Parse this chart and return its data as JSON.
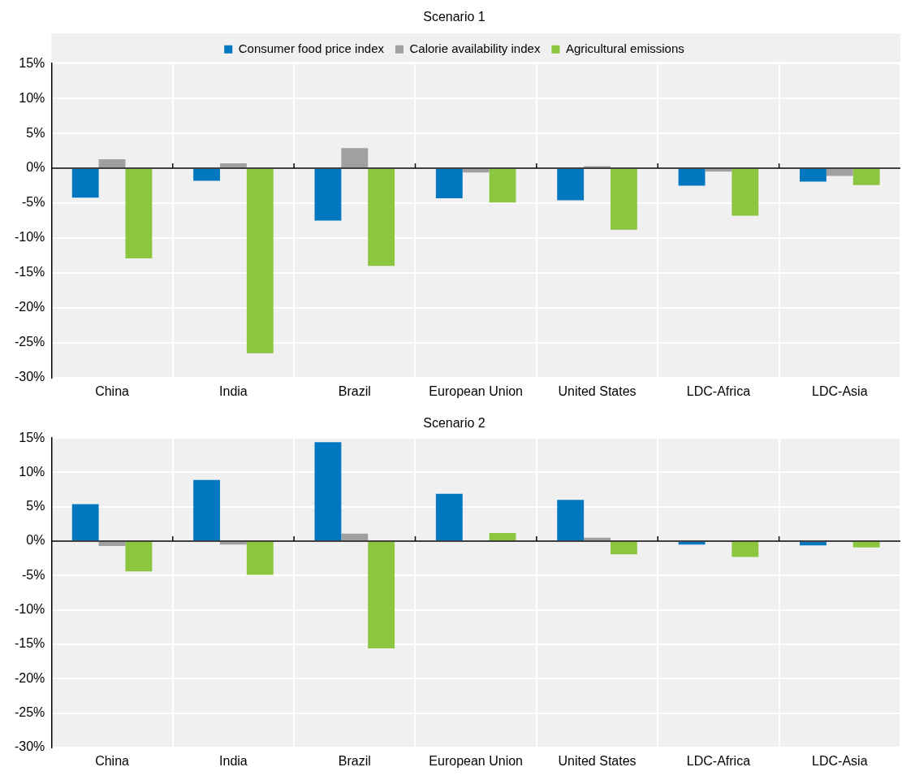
{
  "chart_data": [
    {
      "type": "bar",
      "title": "Scenario 1",
      "categories": [
        "China",
        "India",
        "Brazil",
        "European Union",
        "United States",
        "LDC-Africa",
        "LDC-Asia"
      ],
      "series": [
        {
          "name": "Consumer food price index",
          "color": "#0077bf",
          "values": [
            -4.2,
            -1.8,
            -7.5,
            -4.3,
            -4.6,
            -2.5,
            -1.9
          ]
        },
        {
          "name": "Calorie availability index",
          "color": "#a0a0a0",
          "values": [
            1.3,
            0.7,
            2.9,
            -0.6,
            0.3,
            -0.5,
            -1.1
          ]
        },
        {
          "name": "Agricultural emissions",
          "color": "#8cc540",
          "values": [
            -12.9,
            -26.5,
            -14.0,
            -4.9,
            -8.8,
            -6.8,
            -2.4
          ]
        }
      ],
      "ylim": [
        -30,
        15
      ],
      "yticks": [
        {
          "value": -30,
          "label": "-30%"
        },
        {
          "value": -25,
          "label": "-25%"
        },
        {
          "value": -20,
          "label": "-20%"
        },
        {
          "value": -15,
          "label": "-15%"
        },
        {
          "value": -10,
          "label": "-10%"
        },
        {
          "value": -5,
          "label": "-5%"
        },
        {
          "value": 0,
          "label": "0%"
        },
        {
          "value": 5,
          "label": "5%"
        },
        {
          "value": 10,
          "label": "10%"
        },
        {
          "value": 15,
          "label": "15%"
        }
      ],
      "grid": true,
      "legend": "top"
    },
    {
      "type": "bar",
      "title": "Scenario 2",
      "categories": [
        "China",
        "India",
        "Brazil",
        "European Union",
        "United States",
        "LDC-Africa",
        "LDC-Asia"
      ],
      "series": [
        {
          "color": "#0077bf",
          "values": [
            5.4,
            8.9,
            14.4,
            6.9,
            6.0,
            -0.5,
            -0.6
          ]
        },
        {
          "color": "#a0a0a0",
          "values": [
            -0.7,
            -0.5,
            1.1,
            0,
            0.5,
            0,
            0
          ]
        },
        {
          "color": "#8cc540",
          "values": [
            -4.4,
            -4.9,
            -15.6,
            1.2,
            -1.9,
            -2.3,
            -0.9
          ]
        }
      ],
      "ylim": [
        -30,
        15
      ],
      "yticks": [
        {
          "value": -30,
          "label": "-30%"
        },
        {
          "value": -25,
          "label": "-25%"
        },
        {
          "value": -20,
          "label": "-20%"
        },
        {
          "value": -15,
          "label": "-15%"
        },
        {
          "value": -10,
          "label": "-10%"
        },
        {
          "value": -5,
          "label": "-5%"
        },
        {
          "value": 0,
          "label": "0%"
        },
        {
          "value": 5,
          "label": "5%"
        },
        {
          "value": 10,
          "label": "10%"
        },
        {
          "value": 15,
          "label": "15%"
        }
      ],
      "grid": true,
      "legend": false
    }
  ]
}
